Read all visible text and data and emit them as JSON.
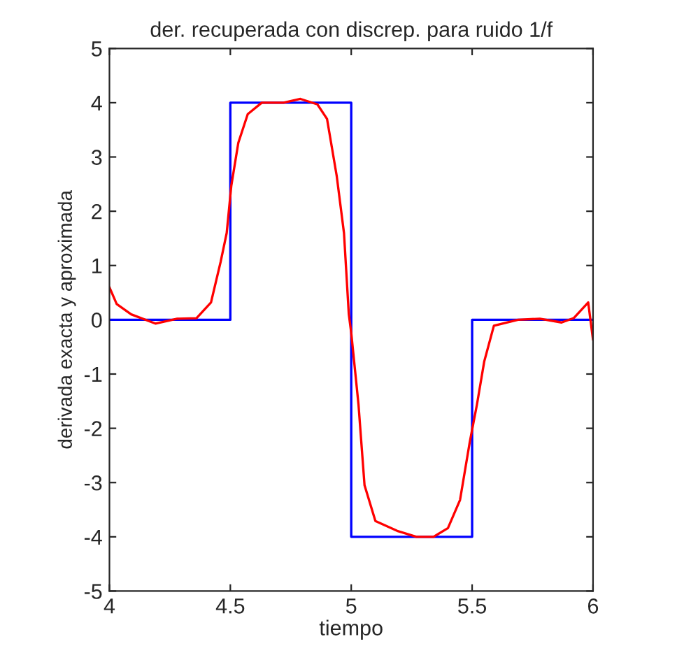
{
  "chart_data": {
    "type": "line",
    "title": "der. recuperada con discrep. para ruido 1/f",
    "xlabel": "tiempo",
    "ylabel": "derivada exacta y aproximada",
    "xlim": [
      4,
      6
    ],
    "ylim": [
      -5,
      5
    ],
    "xticks": [
      4,
      4.5,
      5,
      5.5,
      6
    ],
    "yticks": [
      -5,
      -4,
      -3,
      -2,
      -1,
      0,
      1,
      2,
      3,
      4,
      5
    ],
    "grid": false,
    "marker": "none",
    "line_style": "solid",
    "series": [
      {
        "color": "#0000ff",
        "x": [
          4,
          4.5,
          4.5,
          5,
          5,
          5.5,
          5.5,
          6
        ],
        "values": [
          0,
          0,
          4,
          4,
          -4,
          -4,
          0,
          0
        ]
      },
      {
        "color": "#ff0000",
        "x": [
          4.0,
          4.03,
          4.09,
          4.19,
          4.28,
          4.36,
          4.42,
          4.46,
          4.485,
          4.504,
          4.533,
          4.572,
          4.63,
          4.72,
          4.79,
          4.86,
          4.9,
          4.94,
          4.97,
          4.99,
          5.0,
          5.03,
          5.055,
          5.1,
          5.19,
          5.27,
          5.34,
          5.4,
          5.45,
          5.49,
          5.52,
          5.55,
          5.59,
          5.69,
          5.78,
          5.87,
          5.92,
          5.98,
          6.0
        ],
        "values": [
          0.6,
          0.29,
          0.1,
          -0.07,
          0.02,
          0.03,
          0.32,
          1.07,
          1.6,
          2.47,
          3.26,
          3.79,
          4.0,
          4.0,
          4.07,
          3.97,
          3.7,
          2.65,
          1.6,
          0.1,
          -0.24,
          -1.56,
          -3.05,
          -3.71,
          -3.89,
          -4.0,
          -4.0,
          -3.84,
          -3.32,
          -2.26,
          -1.56,
          -0.77,
          -0.11,
          0,
          0.02,
          -0.05,
          0.03,
          0.32,
          -0.37
        ]
      }
    ]
  }
}
